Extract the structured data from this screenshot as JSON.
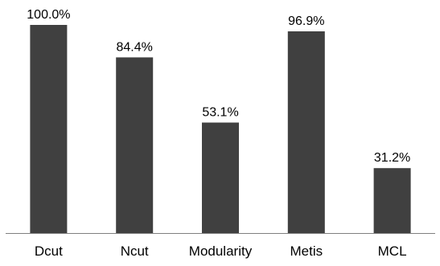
{
  "chart_data": {
    "type": "bar",
    "categories": [
      "Dcut",
      "Ncut",
      "Modularity",
      "Metis",
      "MCL"
    ],
    "values": [
      100.0,
      84.4,
      53.1,
      96.9,
      31.2
    ],
    "data_labels": [
      "100.0%",
      "84.4%",
      "53.1%",
      "96.9%",
      "31.2%"
    ],
    "unit": "%",
    "title": "",
    "xlabel": "",
    "ylabel": "",
    "ylim": [
      0,
      100
    ],
    "grid": false,
    "legend": "none",
    "colors": {
      "bar": "#404040",
      "axis": "#808080",
      "text": "#000000"
    }
  }
}
